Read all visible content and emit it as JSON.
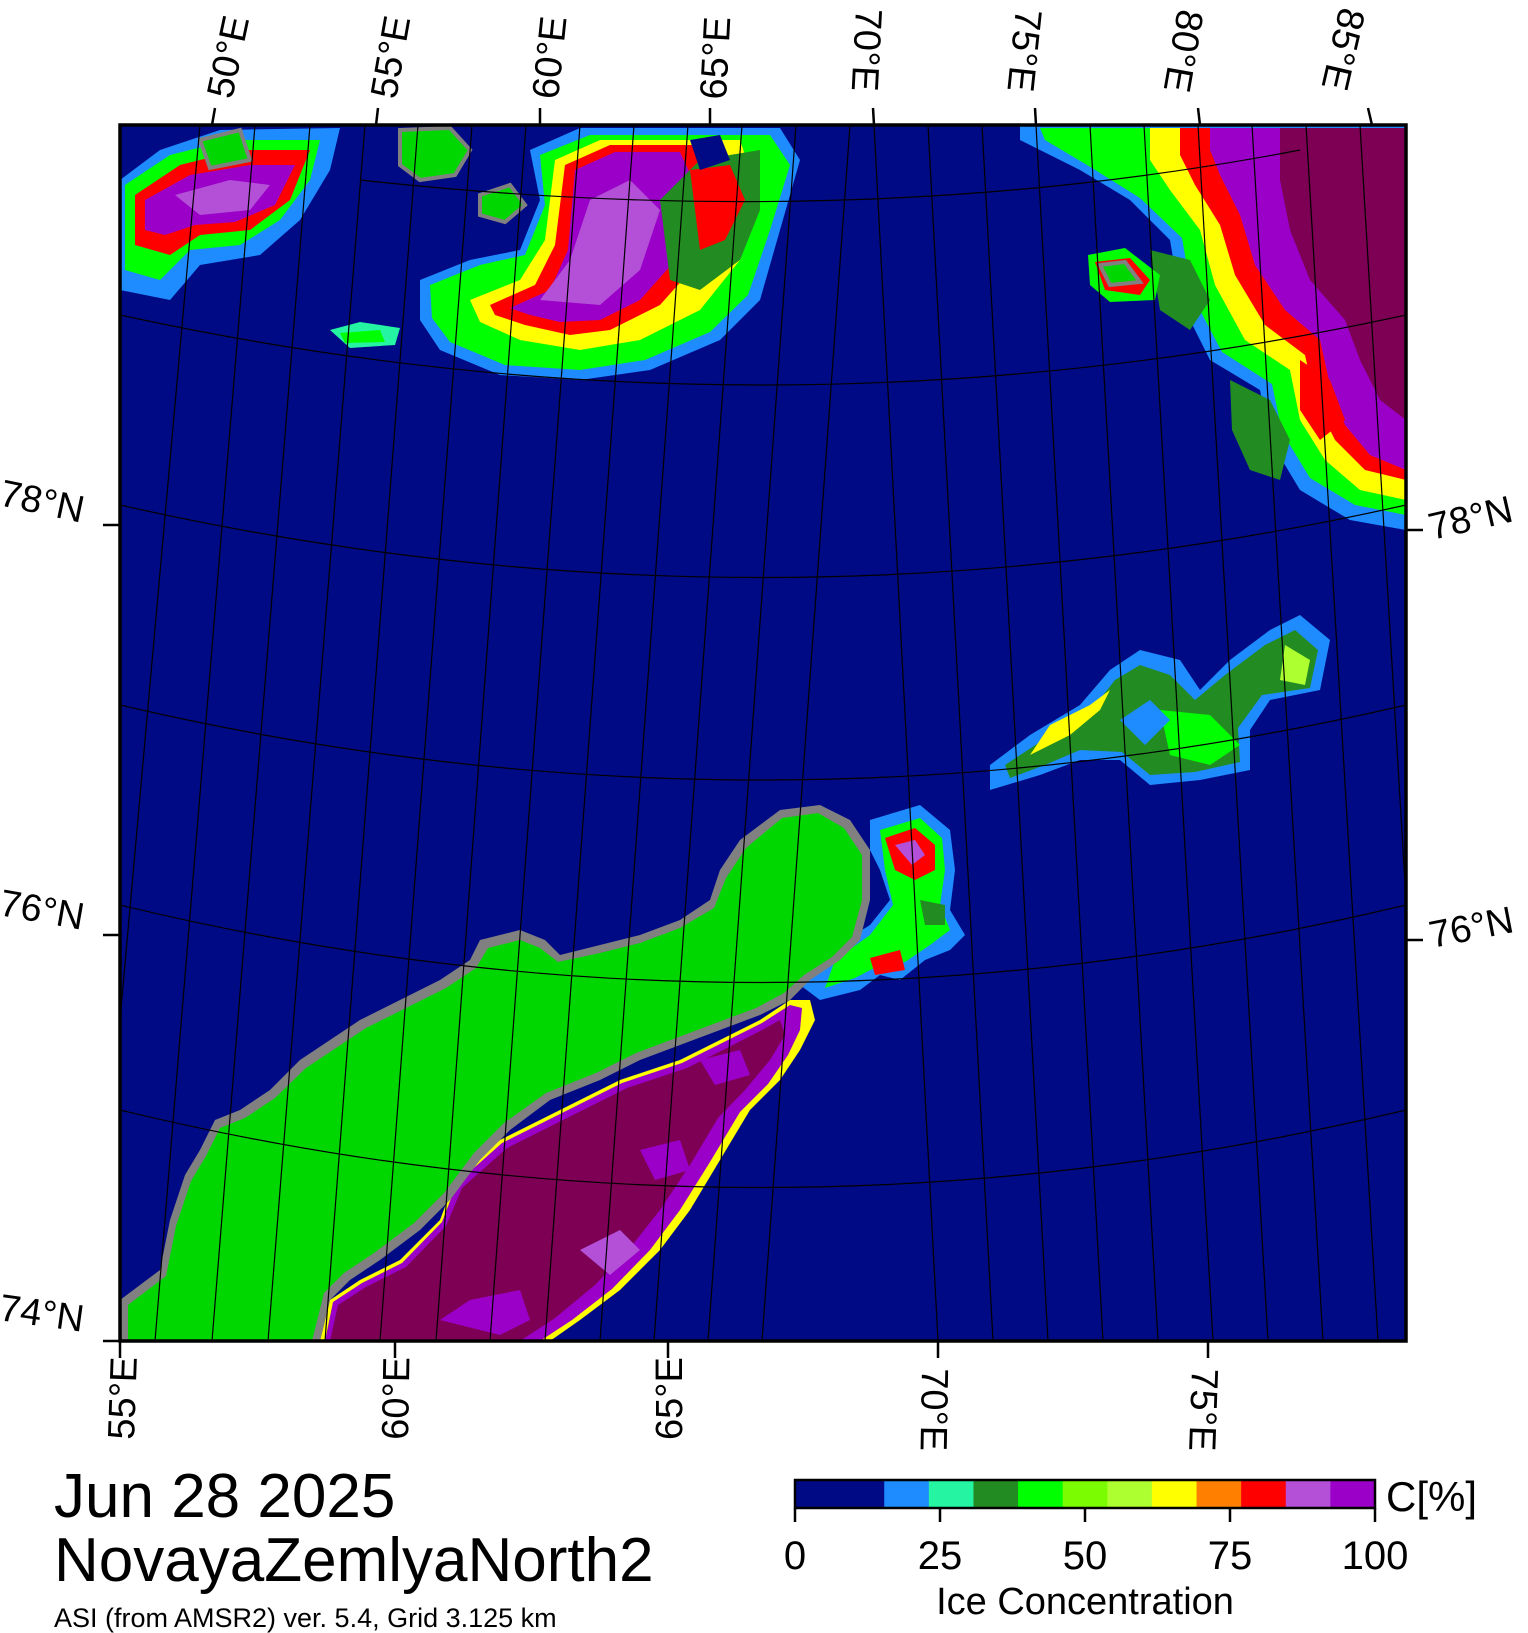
{
  "title": {
    "date": "Jun 28 2025",
    "region": "NovayaZemlyaNorth2",
    "source": "ASI (from AMSR2) ver. 5.4,  Grid 3.125 km"
  },
  "map": {
    "top_lon_labels": [
      "50°E",
      "55°E",
      "60°E",
      "65°E",
      "70°E",
      "75°E",
      "80°E",
      "85°E"
    ],
    "bottom_lon_labels": [
      "55°E",
      "60°E",
      "65°E",
      "70°E",
      "75°E"
    ],
    "left_lat_labels": [
      "78°N",
      "76°N",
      "74°N"
    ],
    "right_lat_labels": [
      "78°N",
      "76°N"
    ]
  },
  "colorbar": {
    "title": "Ice Concentration",
    "unit": "C[%]",
    "ticks": [
      "0",
      "25",
      "50",
      "75",
      "100"
    ],
    "colors": [
      "#000a85",
      "#000a85",
      "#1e8cff",
      "#25f5a2",
      "#228b22",
      "#00ff00",
      "#7cfc00",
      "#adff2f",
      "#ffff00",
      "#ff8000",
      "#ff0000",
      "#b450d8",
      "#9a00c8"
    ]
  },
  "colors": {
    "ocean": "#000a85",
    "land": "#00d700",
    "coast": "#808080",
    "thick_ice": "#7d0055",
    "ice_purple": "#9a00c8",
    "ice_lilac": "#b450d8",
    "ice_red": "#ff0000",
    "ice_yellow": "#ffff00",
    "ice_green": "#00ff00",
    "ice_darkgreen": "#228b22",
    "ice_blue": "#1e8cff"
  }
}
